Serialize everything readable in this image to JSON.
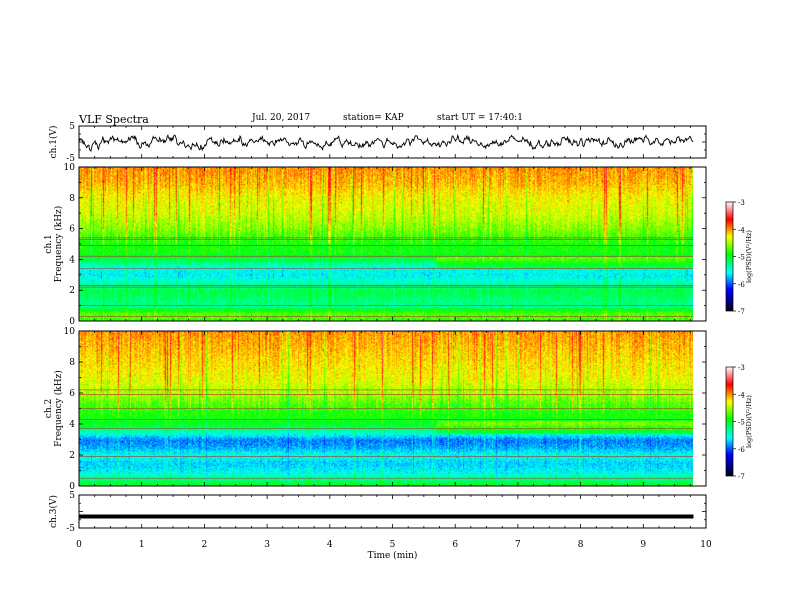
{
  "header": {
    "title": "VLF Spectra",
    "date": "Jul. 20, 2017",
    "station": "station= KAP",
    "start": "start UT = 17:40:1"
  },
  "colors": {
    "spectrogram_scale": [
      "#000000",
      "#0000ff",
      "#00ffff",
      "#00ff00",
      "#ffff00",
      "#ff0000",
      "#ffffff"
    ]
  },
  "chart_data": [
    {
      "type": "line",
      "name": "ch1-waveform",
      "ylabel": "ch.1(V)",
      "ylim": [
        -5,
        5
      ],
      "yticks": [
        "5",
        "-5"
      ],
      "xlim": [
        0,
        10
      ],
      "note_shape": "noisy black trace fluctuating about 0"
    },
    {
      "type": "heatmap",
      "ylabel": "ch.1\nFrequency (kHz)",
      "ylabel_lines": [
        "ch.1",
        "Frequency (kHz)"
      ],
      "ylim": [
        0,
        10
      ],
      "yticks": [
        "10",
        "8",
        "6",
        "4",
        "2",
        "0"
      ],
      "xlim": [
        0,
        10
      ],
      "data_xmax": 9.8,
      "colorbar": {
        "label": "log(PSD)(V²/Hz)",
        "range": [
          -7,
          -3
        ],
        "ticks": [
          "-3",
          "-4",
          "-5",
          "-6",
          "-7"
        ]
      },
      "profile": [
        {
          "f": 0.0,
          "v": -4.8
        },
        {
          "f": 0.5,
          "v": -4.7
        },
        {
          "f": 1.0,
          "v": -5.3
        },
        {
          "f": 1.5,
          "v": -5.2
        },
        {
          "f": 2.0,
          "v": -5.1
        },
        {
          "f": 2.5,
          "v": -5.4
        },
        {
          "f": 3.0,
          "v": -5.6
        },
        {
          "f": 3.5,
          "v": -5.5
        },
        {
          "f": 4.0,
          "v": -5.1
        },
        {
          "f": 4.5,
          "v": -4.9
        },
        {
          "f": 5.0,
          "v": -4.9
        },
        {
          "f": 6.0,
          "v": -4.6
        },
        {
          "f": 7.0,
          "v": -4.4
        },
        {
          "f": 8.0,
          "v": -4.3
        },
        {
          "f": 9.0,
          "v": -4.1
        },
        {
          "f": 10.0,
          "v": -4.0
        }
      ],
      "lines_khz": [
        0.3,
        1.0,
        2.2,
        2.3,
        3.4,
        4.2,
        4.9,
        5.3,
        5.4
      ]
    },
    {
      "type": "heatmap",
      "ylabel": "ch.2\nFrequency (kHz)",
      "ylabel_lines": [
        "ch.2",
        "Frequency (kHz)"
      ],
      "ylim": [
        0,
        10
      ],
      "yticks": [
        "10",
        "8",
        "6",
        "4",
        "2",
        "0"
      ],
      "xlim": [
        0,
        10
      ],
      "data_xmax": 9.8,
      "colorbar": {
        "label": "log(PSD)(V²/Hz)",
        "range": [
          -7,
          -3
        ],
        "ticks": [
          "-3",
          "-4",
          "-5",
          "-6",
          "-7"
        ]
      },
      "profile": [
        {
          "f": 0.0,
          "v": -4.9
        },
        {
          "f": 0.5,
          "v": -5.3
        },
        {
          "f": 1.0,
          "v": -5.6
        },
        {
          "f": 1.5,
          "v": -5.7
        },
        {
          "f": 2.0,
          "v": -5.5
        },
        {
          "f": 2.5,
          "v": -5.8
        },
        {
          "f": 3.0,
          "v": -5.9
        },
        {
          "f": 3.5,
          "v": -5.4
        },
        {
          "f": 4.0,
          "v": -5.0
        },
        {
          "f": 4.5,
          "v": -4.9
        },
        {
          "f": 5.0,
          "v": -4.8
        },
        {
          "f": 6.0,
          "v": -4.5
        },
        {
          "f": 7.0,
          "v": -4.3
        },
        {
          "f": 8.0,
          "v": -4.2
        },
        {
          "f": 9.0,
          "v": -4.1
        },
        {
          "f": 10.0,
          "v": -4.0
        }
      ],
      "lines_khz": [
        0.5,
        1.9,
        3.7,
        4.3,
        5.0,
        5.9,
        6.2
      ]
    },
    {
      "type": "line",
      "name": "ch3-waveform",
      "ylabel": "ch.3(V)",
      "ylim": [
        -5,
        5
      ],
      "yticks": [
        "5",
        "-5"
      ],
      "xlim": [
        0,
        10
      ],
      "constant_value": -1.5
    }
  ],
  "xaxis": {
    "label": "Time (min)",
    "ticks": [
      "0",
      "1",
      "2",
      "3",
      "4",
      "5",
      "6",
      "7",
      "8",
      "9",
      "10"
    ]
  }
}
